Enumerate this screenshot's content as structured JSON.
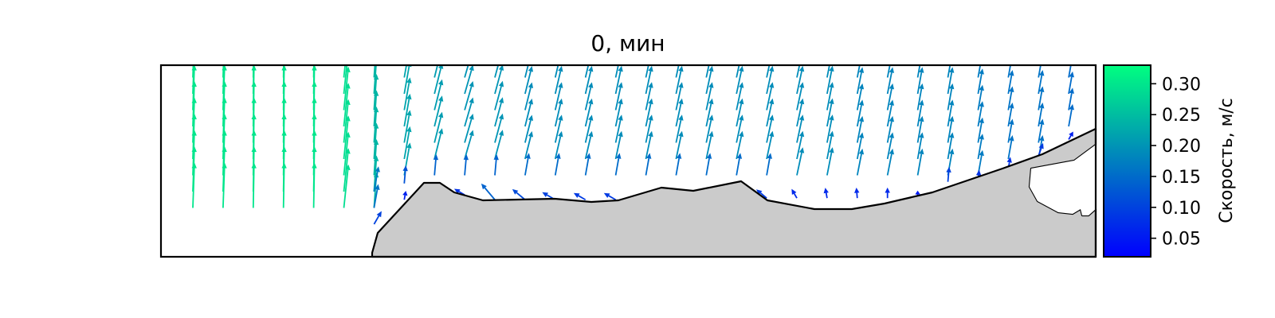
{
  "chart_data": {
    "type": "quiver",
    "title": "0, мин",
    "colorbar": {
      "label": "Скорость, м/с",
      "range": [
        0.02,
        0.33
      ],
      "ticks": [
        "0.05",
        "0.10",
        "0.15",
        "0.20",
        "0.25",
        "0.30"
      ],
      "tick_values": [
        0.05,
        0.1,
        0.15,
        0.2,
        0.25,
        0.3
      ],
      "colormap": [
        "#0000ff",
        "#00ff80"
      ]
    },
    "axes_visible": false,
    "obstacle_color": "#cbcbcb",
    "grid": {
      "columns": 30,
      "rows": 10
    },
    "columns": [
      {
        "c": 0,
        "mag": 0.3,
        "ang": 88,
        "rows": [
          1,
          2,
          3,
          4,
          5,
          6,
          7,
          8,
          9
        ]
      },
      {
        "c": 1,
        "mag": 0.3,
        "ang": 88,
        "rows": [
          1,
          2,
          3,
          4,
          5,
          6,
          7,
          8,
          9
        ]
      },
      {
        "c": 2,
        "mag": 0.3,
        "ang": 89,
        "rows": [
          1,
          2,
          3,
          4,
          5,
          6,
          7,
          8,
          9
        ]
      },
      {
        "c": 3,
        "mag": 0.3,
        "ang": 89,
        "rows": [
          1,
          2,
          3,
          4,
          5,
          6,
          7,
          8,
          9
        ]
      },
      {
        "c": 4,
        "mag": 0.3,
        "ang": 89,
        "rows": [
          1,
          2,
          3,
          4,
          5,
          6,
          7,
          8,
          9
        ]
      },
      {
        "c": 5,
        "mag": 0.29,
        "ang": 84,
        "rows": [
          1,
          2,
          3,
          4,
          5,
          6,
          7,
          8,
          9
        ]
      },
      {
        "c": 6,
        "mag": 0.24,
        "ang": 86,
        "rows": [
          1,
          2,
          3,
          4,
          5,
          6,
          7,
          8,
          9
        ]
      },
      {
        "c": 7,
        "mag": 0.22,
        "ang": 80,
        "rows": [
          3,
          4,
          5,
          6,
          7,
          8,
          9
        ]
      },
      {
        "c": 8,
        "mag": 0.21,
        "ang": 76,
        "rows": [
          4,
          5,
          6,
          7,
          8,
          9
        ]
      },
      {
        "c": 9,
        "mag": 0.2,
        "ang": 74,
        "rows": [
          4,
          5,
          6,
          7,
          8,
          9
        ]
      },
      {
        "c": 10,
        "mag": 0.2,
        "ang": 75,
        "rows": [
          4,
          5,
          6,
          7,
          8,
          9
        ]
      },
      {
        "c": 11,
        "mag": 0.19,
        "ang": 76,
        "rows": [
          4,
          5,
          6,
          7,
          8,
          9
        ]
      },
      {
        "c": 12,
        "mag": 0.19,
        "ang": 77,
        "rows": [
          4,
          5,
          6,
          7,
          8,
          9
        ]
      },
      {
        "c": 13,
        "mag": 0.19,
        "ang": 77,
        "rows": [
          4,
          5,
          6,
          7,
          8,
          9
        ]
      },
      {
        "c": 14,
        "mag": 0.19,
        "ang": 78,
        "rows": [
          4,
          5,
          6,
          7,
          8,
          9
        ]
      },
      {
        "c": 15,
        "mag": 0.19,
        "ang": 78,
        "rows": [
          4,
          5,
          6,
          7,
          8,
          9
        ]
      },
      {
        "c": 16,
        "mag": 0.19,
        "ang": 78,
        "rows": [
          4,
          5,
          6,
          7,
          8,
          9
        ]
      },
      {
        "c": 17,
        "mag": 0.19,
        "ang": 78,
        "rows": [
          4,
          5,
          6,
          7,
          8,
          9
        ]
      },
      {
        "c": 18,
        "mag": 0.19,
        "ang": 78,
        "rows": [
          4,
          5,
          6,
          7,
          8,
          9
        ]
      },
      {
        "c": 19,
        "mag": 0.19,
        "ang": 78,
        "rows": [
          4,
          5,
          6,
          7,
          8,
          9
        ]
      },
      {
        "c": 20,
        "mag": 0.19,
        "ang": 78,
        "rows": [
          3,
          4,
          5,
          6,
          7,
          8,
          9
        ]
      },
      {
        "c": 21,
        "mag": 0.19,
        "ang": 79,
        "rows": [
          3,
          4,
          5,
          6,
          7,
          8,
          9
        ]
      },
      {
        "c": 22,
        "mag": 0.18,
        "ang": 79,
        "rows": [
          3,
          4,
          5,
          6,
          7,
          8,
          9
        ]
      },
      {
        "c": 23,
        "mag": 0.18,
        "ang": 79,
        "rows": [
          3,
          4,
          5,
          6,
          7,
          8,
          9
        ]
      },
      {
        "c": 24,
        "mag": 0.18,
        "ang": 80,
        "rows": [
          3,
          4,
          5,
          6,
          7,
          8,
          9
        ]
      },
      {
        "c": 25,
        "mag": 0.18,
        "ang": 80,
        "rows": [
          3,
          4,
          5,
          6,
          7,
          8,
          9
        ]
      },
      {
        "c": 26,
        "mag": 0.17,
        "ang": 80,
        "rows": [
          3,
          4,
          5,
          6,
          7,
          8,
          9
        ]
      },
      {
        "c": 27,
        "mag": 0.16,
        "ang": 80,
        "rows": [
          4,
          5,
          6,
          7,
          8,
          9
        ]
      },
      {
        "c": 28,
        "mag": 0.16,
        "ang": 80,
        "rows": [
          4,
          5,
          6,
          7,
          8,
          9
        ]
      },
      {
        "c": 29,
        "mag": 0.15,
        "ang": 80,
        "rows": [
          6,
          7,
          8,
          9
        ]
      }
    ],
    "near_wall_vectors": [
      {
        "c": 6,
        "r": 0,
        "mag": 0.1,
        "ang": 60
      },
      {
        "c": 6,
        "r": 1,
        "mag": 0.16,
        "ang": 80
      },
      {
        "c": 6,
        "r": 2,
        "mag": 0.17,
        "ang": 80
      },
      {
        "c": 7,
        "r": 1.5,
        "mag": 0.06,
        "ang": 80
      },
      {
        "c": 7,
        "r": 2.5,
        "mag": 0.12,
        "ang": 85
      },
      {
        "c": 8,
        "r": 3,
        "mag": 0.14,
        "ang": 85
      },
      {
        "c": 9,
        "r": 1.8,
        "mag": 0.08,
        "ang": 150
      },
      {
        "c": 9,
        "r": 3,
        "mag": 0.14,
        "ang": 85
      },
      {
        "c": 10,
        "r": 1.5,
        "mag": 0.14,
        "ang": 130
      },
      {
        "c": 10,
        "r": 3,
        "mag": 0.14,
        "ang": 85
      },
      {
        "c": 11,
        "r": 1.5,
        "mag": 0.11,
        "ang": 140
      },
      {
        "c": 11,
        "r": 3,
        "mag": 0.15,
        "ang": 80
      },
      {
        "c": 12,
        "r": 1.5,
        "mag": 0.1,
        "ang": 150
      },
      {
        "c": 12,
        "r": 3,
        "mag": 0.15,
        "ang": 80
      },
      {
        "c": 13,
        "r": 1.5,
        "mag": 0.09,
        "ang": 150
      },
      {
        "c": 13,
        "r": 3,
        "mag": 0.15,
        "ang": 80
      },
      {
        "c": 14,
        "r": 1.5,
        "mag": 0.09,
        "ang": 150
      },
      {
        "c": 14,
        "r": 3,
        "mag": 0.15,
        "ang": 80
      },
      {
        "c": 15,
        "r": 1.5,
        "mag": 0.07,
        "ang": 160
      },
      {
        "c": 15,
        "r": 3,
        "mag": 0.15,
        "ang": 80
      },
      {
        "c": 16,
        "r": 1.6,
        "mag": 0.06,
        "ang": 170
      },
      {
        "c": 16,
        "r": 3,
        "mag": 0.15,
        "ang": 80
      },
      {
        "c": 17,
        "r": 1.6,
        "mag": 0.06,
        "ang": 180
      },
      {
        "c": 17,
        "r": 3,
        "mag": 0.15,
        "ang": 80
      },
      {
        "c": 18,
        "r": 1.6,
        "mag": 0.05,
        "ang": 200
      },
      {
        "c": 18,
        "r": 3,
        "mag": 0.15,
        "ang": 80
      },
      {
        "c": 19,
        "r": 1.6,
        "mag": 0.09,
        "ang": 140
      },
      {
        "c": 19,
        "r": 3,
        "mag": 0.15,
        "ang": 80
      },
      {
        "c": 20,
        "r": 0.6,
        "mag": 0.07,
        "ang": 190
      },
      {
        "c": 20,
        "r": 1.6,
        "mag": 0.07,
        "ang": 120
      },
      {
        "c": 21,
        "r": 0.4,
        "mag": 0.07,
        "ang": 200
      },
      {
        "c": 21,
        "r": 1.6,
        "mag": 0.07,
        "ang": 100
      },
      {
        "c": 22,
        "r": 0.4,
        "mag": 0.06,
        "ang": 200
      },
      {
        "c": 22,
        "r": 1.6,
        "mag": 0.07,
        "ang": 95
      },
      {
        "c": 23,
        "r": 1.6,
        "mag": 0.07,
        "ang": 90
      },
      {
        "c": 24,
        "r": 1.6,
        "mag": 0.05,
        "ang": 90
      },
      {
        "c": 25,
        "r": 1.6,
        "mag": 0.05,
        "ang": 90
      },
      {
        "c": 25,
        "r": 2.6,
        "mag": 0.1,
        "ang": 85
      },
      {
        "c": 26,
        "r": 2.6,
        "mag": 0.08,
        "ang": 85
      },
      {
        "c": 27,
        "r": 3.4,
        "mag": 0.08,
        "ang": 80
      },
      {
        "c": 28,
        "r": 2.2,
        "mag": 0.04,
        "ang": 200
      },
      {
        "c": 28,
        "r": 4.2,
        "mag": 0.09,
        "ang": 70
      },
      {
        "c": 29,
        "r": 5.2,
        "mag": 0.06,
        "ang": 60
      }
    ]
  }
}
